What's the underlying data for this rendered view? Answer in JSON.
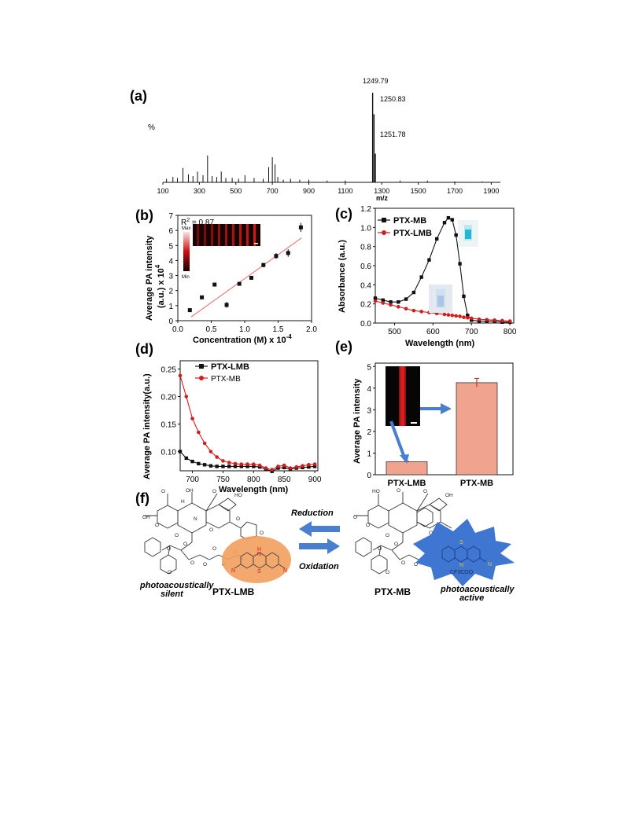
{
  "panels": {
    "a": {
      "label": "(a)",
      "ylabel": "%",
      "xlabel": "m/z",
      "peak_labels": [
        "1249.79",
        "1250.83",
        "1251.78"
      ],
      "xticks": [
        "100",
        "300",
        "500",
        "700",
        "900",
        "1100",
        "1300",
        "1500",
        "1700",
        "1900"
      ]
    },
    "b": {
      "label": "(b)",
      "ylabel_line1": "Average PA intensity",
      "ylabel_line2": "(a.u.) x 10",
      "ylabel_exp": "4",
      "xlabel": "Concentration (M) x 10",
      "xlabel_exp": "-4",
      "r2_prefix": "R",
      "r2_exp": "2",
      "r2_value": " = 0.87",
      "colorbar_max": "Max",
      "colorbar_min": "Min",
      "yticks": [
        "0",
        "1",
        "2",
        "3",
        "4",
        "5",
        "6",
        "7"
      ],
      "xticks": [
        "0.0",
        "0.5",
        "1.0",
        "1.5",
        "2.0"
      ]
    },
    "c": {
      "label": "(c)",
      "ylabel": "Absorbance (a.u.)",
      "xlabel": "Wavelength (nm)",
      "legend": [
        "PTX-MB",
        "PTX-LMB"
      ],
      "yticks": [
        "0.0",
        "0.2",
        "0.4",
        "0.6",
        "0.8",
        "1.0",
        "1.2"
      ],
      "xticks": [
        "500",
        "600",
        "700",
        "800"
      ]
    },
    "d": {
      "label": "(d)",
      "ylabel": "Average PA intensity(a.u.)",
      "xlabel": "Wavelength (nm)",
      "legend": [
        "PTX-LMB",
        "PTX-MB"
      ],
      "yticks": [
        "0.10",
        "0.15",
        "0.20",
        "0.25"
      ],
      "xticks": [
        "700",
        "750",
        "800",
        "850",
        "900"
      ]
    },
    "e": {
      "label": "(e)",
      "ylabel": "Average PA intensity",
      "yticks": [
        "0",
        "1",
        "2",
        "3",
        "4",
        "5"
      ],
      "categories": [
        "PTX-LMB",
        "PTX-MB"
      ]
    },
    "f": {
      "label": "(f)",
      "reduction": "Reduction",
      "oxidation": "Oxidation",
      "left_compound": "PTX-LMB",
      "right_compound": "PTX-MB",
      "left_note_1": "photoacoustically",
      "left_note_2": "silent",
      "right_note_1": "photoacoustically",
      "right_note_2": "active",
      "counterion": "CF3COO",
      "atom_labels": [
        "H",
        "N",
        "S",
        "N",
        "N",
        "S",
        "N",
        "N",
        "O",
        "OH",
        "O",
        "HO",
        "O",
        "O",
        "O",
        "OH",
        "O",
        "O",
        "O",
        "O",
        "O",
        "O",
        "O",
        "O",
        "H",
        "N",
        "O",
        "O",
        "HO",
        "O",
        "O",
        "OH",
        "O",
        "O",
        "O",
        "O",
        "O",
        "O",
        "O",
        "O",
        "H",
        "N",
        "O"
      ]
    }
  },
  "colors": {
    "mb": "#d11d1d",
    "lmb": "#111111",
    "bar": "#f0a48f",
    "blob": "#3f76d1",
    "oval": "#f2a05d",
    "arrow": "#4a7fd0"
  },
  "chart_data": [
    {
      "type": "bar",
      "panel": "a",
      "title": "",
      "xlabel": "m/z",
      "ylabel": "%",
      "xlim": [
        100,
        1950
      ],
      "ylim": [
        0,
        100
      ],
      "x": [
        120,
        155,
        180,
        210,
        240,
        265,
        290,
        320,
        345,
        370,
        395,
        420,
        445,
        480,
        515,
        550,
        600,
        650,
        680,
        700,
        715,
        730,
        760,
        800,
        850,
        900,
        1000,
        1100,
        1249.79,
        1250.83,
        1251.78,
        1400,
        1550,
        1700,
        1850
      ],
      "values": [
        4,
        6,
        5,
        16,
        9,
        7,
        12,
        8,
        30,
        7,
        6,
        12,
        5,
        5,
        4,
        8,
        5,
        4,
        17,
        28,
        20,
        6,
        3,
        4,
        3,
        3,
        2,
        2,
        100,
        76,
        32,
        2,
        2,
        1,
        1
      ],
      "annotations": [
        "1249.79",
        "1250.83",
        "1251.78"
      ]
    },
    {
      "type": "scatter",
      "panel": "b",
      "xlabel": "Concentration (M) x 10-4",
      "ylabel": "Average PA intensity (a.u.) x 104",
      "xlim": [
        0,
        2.0
      ],
      "ylim": [
        0,
        7
      ],
      "x": [
        0.18,
        0.36,
        0.55,
        0.73,
        0.92,
        1.1,
        1.28,
        1.47,
        1.65,
        1.84
      ],
      "y": [
        0.7,
        1.55,
        2.4,
        1.05,
        2.45,
        2.85,
        3.7,
        4.3,
        4.5,
        6.2
      ],
      "error": [
        0.05,
        0.1,
        0.1,
        0.2,
        0.1,
        0.1,
        0.15,
        0.2,
        0.25,
        0.3
      ],
      "fit": {
        "x": [
          0.2,
          1.85
        ],
        "y": [
          0.25,
          5.5
        ]
      },
      "annotations": [
        "R2 = 0.87"
      ]
    },
    {
      "type": "line",
      "panel": "c",
      "xlabel": "Wavelength (nm)",
      "ylabel": "Absorbance (a.u.)",
      "xlim": [
        450,
        810
      ],
      "ylim": [
        0,
        1.2
      ],
      "x": [
        450,
        470,
        490,
        510,
        530,
        550,
        570,
        590,
        610,
        630,
        640,
        650,
        660,
        670,
        680,
        690,
        700,
        720,
        740,
        760,
        780,
        800
      ],
      "series": [
        {
          "name": "PTX-MB",
          "values": [
            0.26,
            0.24,
            0.22,
            0.22,
            0.25,
            0.32,
            0.48,
            0.66,
            0.88,
            1.05,
            1.1,
            1.08,
            0.92,
            0.62,
            0.28,
            0.08,
            0.03,
            0.02,
            0.02,
            0.02,
            0.01,
            0.01
          ]
        },
        {
          "name": "PTX-LMB",
          "values": [
            0.23,
            0.21,
            0.19,
            0.17,
            0.15,
            0.13,
            0.12,
            0.11,
            0.1,
            0.09,
            0.085,
            0.08,
            0.075,
            0.07,
            0.06,
            0.055,
            0.05,
            0.04,
            0.035,
            0.03,
            0.025,
            0.02
          ]
        }
      ]
    },
    {
      "type": "line",
      "panel": "d",
      "xlabel": "Wavelength (nm)",
      "ylabel": "Average PA intensity(a.u.)",
      "xlim": [
        680,
        905
      ],
      "ylim": [
        0.065,
        0.265
      ],
      "x": [
        680,
        690,
        700,
        710,
        720,
        730,
        740,
        750,
        760,
        770,
        780,
        790,
        800,
        810,
        820,
        830,
        840,
        850,
        860,
        870,
        880,
        890,
        900
      ],
      "series": [
        {
          "name": "PTX-LMB",
          "values": [
            0.1,
            0.088,
            0.082,
            0.078,
            0.076,
            0.074,
            0.073,
            0.073,
            0.073,
            0.073,
            0.073,
            0.073,
            0.073,
            0.072,
            0.068,
            0.064,
            0.07,
            0.071,
            0.068,
            0.07,
            0.071,
            0.072,
            0.073
          ]
        },
        {
          "name": "PTX-MB",
          "values": [
            0.238,
            0.2,
            0.16,
            0.135,
            0.115,
            0.1,
            0.09,
            0.083,
            0.08,
            0.078,
            0.077,
            0.077,
            0.077,
            0.075,
            0.07,
            0.067,
            0.073,
            0.075,
            0.07,
            0.072,
            0.074,
            0.076,
            0.077
          ]
        }
      ]
    },
    {
      "type": "bar",
      "panel": "e",
      "ylabel": "Average PA intensity",
      "ylim": [
        0,
        5
      ],
      "categories": [
        "PTX-LMB",
        "PTX-MB"
      ],
      "values": [
        0.6,
        4.25
      ],
      "error": [
        0.02,
        0.2
      ]
    }
  ]
}
